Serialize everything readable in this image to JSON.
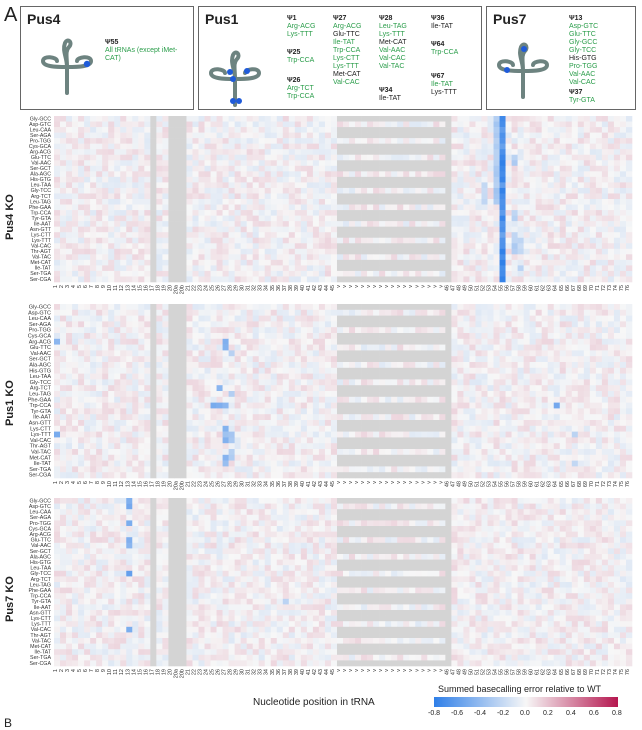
{
  "panel_label": "A",
  "panel_b_label": "B",
  "boxes": [
    {
      "title": "Pus4",
      "sites": [
        {
          "psi": "Ψ55",
          "items": [
            {
              "t": "All tRNAs (except iMet-CAT)",
              "c": "g"
            }
          ]
        }
      ]
    },
    {
      "title": "Pus1",
      "sites": [
        {
          "psi": "Ψ1",
          "items": [
            {
              "t": "Arg-ACG",
              "c": "g"
            },
            {
              "t": "Lys-TTT",
              "c": "g"
            }
          ]
        },
        {
          "psi": "Ψ25",
          "items": [
            {
              "t": "Trp-CCA",
              "c": "g"
            }
          ]
        },
        {
          "psi": "Ψ26",
          "items": [
            {
              "t": "Arg-TCT",
              "c": "g"
            },
            {
              "t": "Trp-CCA",
              "c": "g"
            }
          ]
        },
        {
          "psi": "Ψ27",
          "items": [
            {
              "t": "Arg-ACG",
              "c": "g"
            },
            {
              "t": "Glu-TTC",
              "c": "k"
            },
            {
              "t": "Ile-TAT",
              "c": "g"
            },
            {
              "t": "Trp-CCA",
              "c": "g"
            },
            {
              "t": "Lys-CTT",
              "c": "g"
            },
            {
              "t": "Lys-TTT",
              "c": "g"
            },
            {
              "t": "Met-CAT",
              "c": "k"
            },
            {
              "t": "Val-CAC",
              "c": "g"
            }
          ]
        },
        {
          "psi": "Ψ28",
          "items": [
            {
              "t": "Leu-TAG",
              "c": "g"
            },
            {
              "t": "Lys-TTT",
              "c": "g"
            },
            {
              "t": "Met-CAT",
              "c": "k"
            },
            {
              "t": "Val-AAC",
              "c": "g"
            },
            {
              "t": "Val-CAC",
              "c": "g"
            },
            {
              "t": "Val-TAC",
              "c": "g"
            }
          ]
        },
        {
          "psi": "Ψ34",
          "items": [
            {
              "t": "Ile-TAT",
              "c": "k"
            }
          ]
        },
        {
          "psi": "Ψ36",
          "items": [
            {
              "t": "Ile-TAT",
              "c": "k"
            }
          ]
        },
        {
          "psi": "Ψ64",
          "items": [
            {
              "t": "Trp-CCA",
              "c": "g"
            }
          ]
        },
        {
          "psi": "Ψ67",
          "items": [
            {
              "t": "Ile-TAT",
              "c": "g"
            },
            {
              "t": "Lys-TTT",
              "c": "k"
            }
          ]
        }
      ]
    },
    {
      "title": "Pus7",
      "sites": [
        {
          "psi": "Ψ13",
          "items": [
            {
              "t": "Asp-GTC",
              "c": "g"
            },
            {
              "t": "Glu-TTC",
              "c": "g"
            },
            {
              "t": "Gly-GCC",
              "c": "g"
            },
            {
              "t": "Gly-TCC",
              "c": "g"
            },
            {
              "t": "His-GTG",
              "c": "k"
            },
            {
              "t": "Pro-TGG",
              "c": "g"
            },
            {
              "t": "Val-AAC",
              "c": "g"
            },
            {
              "t": "Val-CAC",
              "c": "g"
            }
          ]
        },
        {
          "psi": "Ψ37",
          "items": [
            {
              "t": "Tyr-GTA",
              "c": "g"
            }
          ]
        }
      ]
    }
  ],
  "chart_data": [
    {
      "type": "heatmap",
      "title": "Pus4 KO",
      "trnas": [
        "Gly-GCC",
        "Asp-GTC",
        "Leu-CAA",
        "Ser-AGA",
        "Pro-TGG",
        "Cys-GCA",
        "Arg-ACG",
        "Glu-TTC",
        "Val-AAC",
        "Ser-GCT",
        "Ala-AGC",
        "His-GTG",
        "Leu-TAA",
        "Gly-TCC",
        "Arg-TCT",
        "Leu-TAG",
        "Phe-GAA",
        "Trp-CCA",
        "Tyr-GTA",
        "Ile-AAT",
        "Asn-GTT",
        "Lys-CTT",
        "Lys-TTT",
        "Val-CAC",
        "Thr-AGT",
        "Val-TAC",
        "Met-CAT",
        "Ile-TAT",
        "Ser-TGA",
        "Ser-CGA"
      ],
      "hotspots": [
        {
          "pos": "55",
          "rows": "all",
          "value": -0.8
        },
        {
          "pos": "54",
          "rows": [
            "Gly-GCC",
            "Asp-GTC",
            "Leu-CAA",
            "Ser-AGA",
            "Pro-TGG",
            "Cys-GCA",
            "Arg-ACG",
            "Glu-TTC",
            "Val-AAC",
            "Ser-GCT",
            "Ala-AGC",
            "His-GTG",
            "Leu-TAA",
            "Gly-TCC",
            "Arg-TCT",
            "Leu-TAG"
          ],
          "value": -0.35
        },
        {
          "pos": "57",
          "rows": [
            "Glu-TTC",
            "Val-AAC",
            "Trp-CCA",
            "Tyr-GTA",
            "Lys-CTT",
            "Lys-TTT",
            "Val-CAC",
            "Thr-AGT"
          ],
          "value": -0.3
        },
        {
          "pos": "58",
          "rows": [
            "Lys-TTT",
            "Val-CAC",
            "Thr-AGT",
            "Ile-TAT"
          ],
          "value": -0.25
        },
        {
          "pos": "52",
          "rows": [
            "Leu-TAA",
            "Gly-TCC",
            "Arg-TCT",
            "Leu-TAG"
          ],
          "value": -0.25
        }
      ]
    },
    {
      "type": "heatmap",
      "title": "Pus1 KO",
      "trnas": [
        "Gly-GCC",
        "Asp-GTC",
        "Leu-CAA",
        "Ser-AGA",
        "Pro-TGG",
        "Cys-GCA",
        "Arg-ACG",
        "Glu-TTC",
        "Val-AAC",
        "Ser-GCT",
        "Ala-AGC",
        "His-GTG",
        "Leu-TAA",
        "Gly-TCC",
        "Arg-TCT",
        "Leu-TAG",
        "Phe-GAA",
        "Trp-CCA",
        "Tyr-GTA",
        "Ile-AAT",
        "Asn-GTT",
        "Lys-CTT",
        "Lys-TTT",
        "Val-CAC",
        "Thr-AGT",
        "Val-TAC",
        "Met-CAT",
        "Ile-TAT",
        "Ser-TGA",
        "Ser-CGA"
      ],
      "hotspots": [
        {
          "pos": "1",
          "rows": [
            "Arg-ACG",
            "Lys-TTT"
          ],
          "value": -0.55
        },
        {
          "pos": "25",
          "rows": [
            "Trp-CCA"
          ],
          "value": -0.6
        },
        {
          "pos": "26",
          "rows": [
            "Arg-TCT",
            "Trp-CCA"
          ],
          "value": -0.55
        },
        {
          "pos": "27",
          "rows": [
            "Arg-ACG",
            "Glu-TTC",
            "Ile-TAT",
            "Trp-CCA",
            "Lys-CTT",
            "Lys-TTT",
            "Met-CAT",
            "Val-CAC"
          ],
          "value": -0.5
        },
        {
          "pos": "28",
          "rows": [
            "Leu-TAG",
            "Lys-TTT",
            "Met-CAT",
            "Val-AAC",
            "Val-CAC",
            "Val-TAC"
          ],
          "value": -0.35
        },
        {
          "pos": "64",
          "rows": [
            "Trp-CCA"
          ],
          "value": -0.55
        },
        {
          "pos": "67",
          "rows": [
            "Ile-TAT",
            "Lys-TTT"
          ],
          "value": -0.25
        }
      ]
    },
    {
      "type": "heatmap",
      "title": "Pus7 KO",
      "trnas": [
        "Gly-GCC",
        "Asp-GTC",
        "Leu-CAA",
        "Ser-AGA",
        "Pro-TGG",
        "Cys-GCA",
        "Arg-ACG",
        "Glu-TTC",
        "Val-AAC",
        "Ser-GCT",
        "Ala-AGC",
        "His-GTG",
        "Leu-TAA",
        "Gly-TCC",
        "Arg-TCT",
        "Leu-TAG",
        "Phe-GAA",
        "Trp-CCA",
        "Tyr-GTA",
        "Ile-AAT",
        "Asn-GTT",
        "Lys-CTT",
        "Lys-TTT",
        "Val-CAC",
        "Thr-AGT",
        "Val-TAC",
        "Met-CAT",
        "Ile-TAT",
        "Ser-TGA",
        "Ser-CGA"
      ],
      "hotspots": [
        {
          "pos": "13",
          "rows": [
            "Gly-GCC",
            "Asp-GTC",
            "Pro-TGG",
            "Glu-TTC",
            "Val-AAC",
            "Gly-TCC",
            "Val-CAC"
          ],
          "value": -0.6
        },
        {
          "pos": "37",
          "rows": [
            "Tyr-GTA"
          ],
          "value": -0.3
        }
      ]
    }
  ],
  "positions": [
    "1",
    "2",
    "3",
    "4",
    "5",
    "6",
    "7",
    "8",
    "9",
    "10",
    "11",
    "12",
    "13",
    "14",
    "15",
    "16",
    "17",
    "18",
    "19",
    "20",
    "20a",
    "20b",
    "21",
    "22",
    "23",
    "24",
    "25",
    "26",
    "27",
    "28",
    "29",
    "30",
    "31",
    "32",
    "33",
    "34",
    "35",
    "36",
    "37",
    "38",
    "39",
    "40",
    "41",
    "42",
    "43",
    "44",
    "45",
    "v",
    "v",
    "v",
    "v",
    "v",
    "v",
    "v",
    "v",
    "v",
    "v",
    "v",
    "v",
    "v",
    "v",
    "v",
    "v",
    "v",
    "v",
    "46",
    "47",
    "48",
    "49",
    "50",
    "51",
    "52",
    "53",
    "54",
    "55",
    "56",
    "57",
    "58",
    "59",
    "60",
    "61",
    "62",
    "63",
    "64",
    "65",
    "66",
    "67",
    "68",
    "69",
    "70",
    "71",
    "72",
    "73",
    "74",
    "75",
    "76"
  ],
  "x_axis_title": "Nucleotide position in tRNA",
  "colorbar": {
    "title": "Summed basecalling error relative to WT",
    "min": -0.8,
    "max": 0.8,
    "ticks": [
      "-0.8",
      "-0.6",
      "-0.4",
      "-0.2",
      "0.0",
      "0.2",
      "0.4",
      "0.6",
      "0.8"
    ],
    "neg_color": "#2f7fe8",
    "pos_color": "#b5174f",
    "missing_color": "#d4d4d4"
  }
}
